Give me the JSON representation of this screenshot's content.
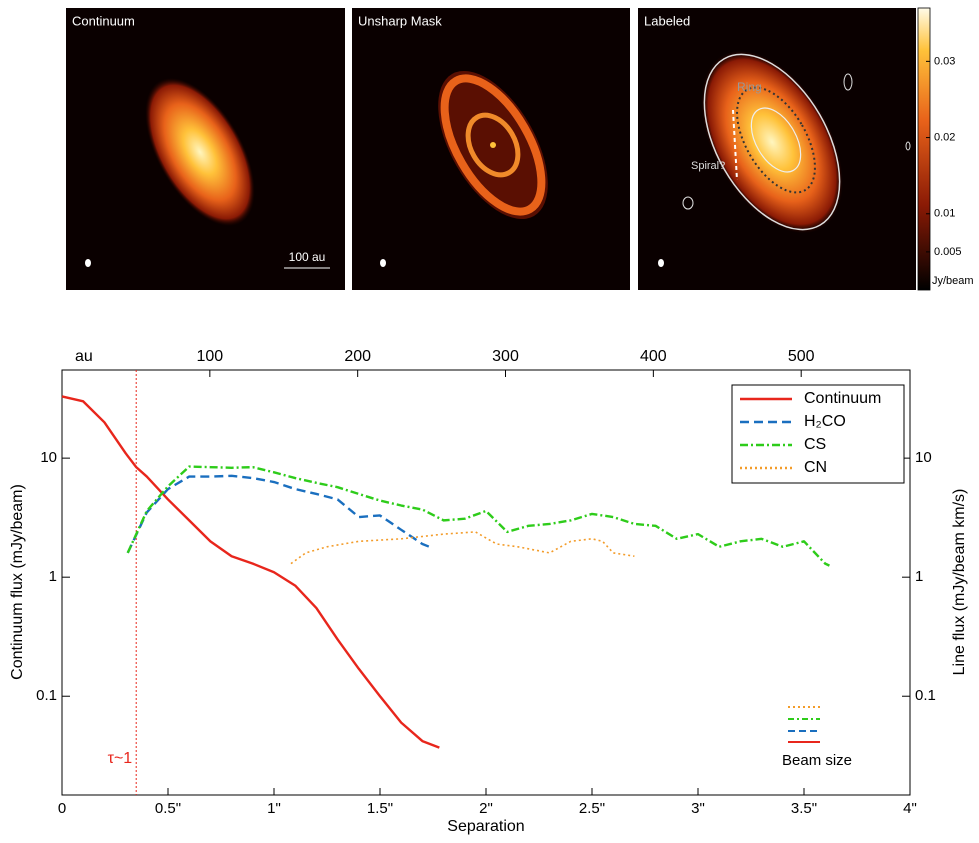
{
  "panels": [
    {
      "title": "Continuum",
      "scale_bar": "100 au"
    },
    {
      "title": "Unsharp Mask"
    },
    {
      "title": "Labeled",
      "annotations": [
        "Ring",
        "Spiral?"
      ]
    }
  ],
  "colorbar": {
    "lim": [
      0,
      0.037
    ],
    "ticks": [
      0.03,
      0.02,
      0.01,
      0.005
    ],
    "label": "Jy/beam"
  },
  "chart_data": {
    "type": "line",
    "log_y": true,
    "xlabel": "Separation",
    "ylabel": "Continuum flux (mJy/beam)",
    "y2label": "Line flux (mJy/beam km/s)",
    "x2label": "au",
    "xlim": [
      0,
      4
    ],
    "xticks": [
      0,
      {
        "value": 0.5,
        "label": "0.5\""
      },
      {
        "value": 1,
        "label": "1\""
      },
      {
        "value": 1.5,
        "label": "1.5\""
      },
      {
        "value": 2,
        "label": "2\""
      },
      {
        "value": 2.5,
        "label": "2.5\""
      },
      {
        "value": 3,
        "label": "3\""
      },
      {
        "value": 3.5,
        "label": "3.5\""
      },
      {
        "value": 4,
        "label": "4\""
      }
    ],
    "x2lim": [
      0,
      573.6
    ],
    "x2ticks": [
      100,
      200,
      300,
      400,
      500
    ],
    "ylim": [
      0.0148,
      55
    ],
    "yticks": [
      10,
      1,
      0.1
    ],
    "y2lim": [
      0.0148,
      55
    ],
    "y2ticks": [
      10,
      1,
      0.1
    ],
    "legend": "upper right",
    "annotations": [
      {
        "text": "τ~1",
        "x": 0.35
      }
    ],
    "beam_label": "Beam size",
    "series": [
      {
        "name": "Continuum",
        "color": "#e8261c",
        "dash": "solid",
        "x": [
          0,
          0.1,
          0.2,
          0.3,
          0.35,
          0.4,
          0.5,
          0.6,
          0.7,
          0.8,
          0.9,
          1.0,
          1.1,
          1.2,
          1.3,
          1.4,
          1.5,
          1.6,
          1.7,
          1.78
        ],
        "values": [
          33,
          30,
          20,
          11,
          8.4,
          7,
          4.5,
          3,
          2,
          1.5,
          1.3,
          1.1,
          0.85,
          0.55,
          0.3,
          0.17,
          0.1,
          0.06,
          0.042,
          0.037
        ]
      },
      {
        "name": "H₂CO",
        "color": "#1a6fbf",
        "dash": "dashed",
        "axis": "y2",
        "x": [
          0.31,
          0.4,
          0.5,
          0.6,
          0.7,
          0.8,
          0.9,
          1.0,
          1.1,
          1.2,
          1.3,
          1.4,
          1.5,
          1.6,
          1.7,
          1.75
        ],
        "values": [
          1.6,
          3.5,
          5.5,
          7,
          7,
          7.1,
          6.8,
          6.3,
          5.5,
          5.0,
          4.5,
          3.2,
          3.3,
          2.5,
          1.9,
          1.75
        ]
      },
      {
        "name": "CS",
        "color": "#2ecc1a",
        "dash": "dashdot",
        "axis": "y2",
        "x": [
          0.31,
          0.4,
          0.5,
          0.6,
          0.7,
          0.8,
          0.9,
          1.0,
          1.1,
          1.2,
          1.3,
          1.4,
          1.5,
          1.6,
          1.7,
          1.8,
          1.9,
          2.0,
          2.1,
          2.2,
          2.3,
          2.4,
          2.5,
          2.6,
          2.7,
          2.8,
          2.9,
          3.0,
          3.1,
          3.2,
          3.3,
          3.4,
          3.5,
          3.6,
          3.62
        ],
        "values": [
          1.6,
          3.6,
          5.8,
          8.5,
          8.4,
          8.3,
          8.4,
          7.6,
          6.8,
          6.2,
          5.7,
          5.0,
          4.4,
          4.0,
          3.7,
          3.0,
          3.1,
          3.6,
          2.4,
          2.7,
          2.8,
          3.0,
          3.4,
          3.2,
          2.8,
          2.7,
          2.1,
          2.3,
          1.8,
          2.0,
          2.1,
          1.8,
          2.0,
          1.3,
          1.25
        ]
      },
      {
        "name": "CN",
        "color": "#f39c2a",
        "dash": "dotted",
        "axis": "y2",
        "x": [
          1.08,
          1.15,
          1.25,
          1.4,
          1.6,
          1.8,
          1.95,
          2.05,
          2.15,
          2.3,
          2.4,
          2.5,
          2.55,
          2.6,
          2.7
        ],
        "values": [
          1.3,
          1.6,
          1.8,
          2.0,
          2.1,
          2.3,
          2.4,
          1.9,
          1.8,
          1.6,
          2.0,
          2.1,
          2.0,
          1.6,
          1.5
        ]
      }
    ]
  }
}
